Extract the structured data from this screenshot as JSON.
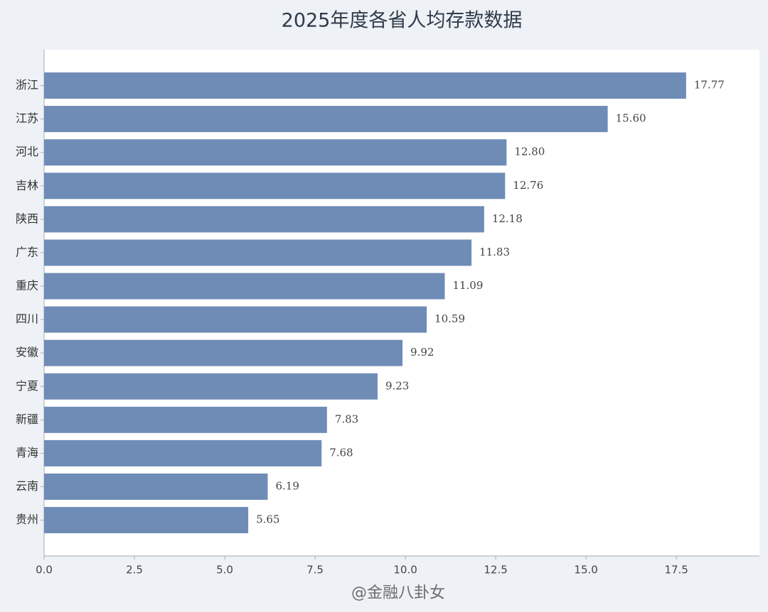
{
  "chart_data": {
    "type": "barh",
    "title": "2025年度各省人均存款数据",
    "categories": [
      "浙江",
      "江苏",
      "河北",
      "吉林",
      "陕西",
      "广东",
      "重庆",
      "四川",
      "安徽",
      "宁夏",
      "新疆",
      "青海",
      "云南",
      "贵州"
    ],
    "values": [
      17.77,
      15.6,
      12.8,
      12.76,
      12.18,
      11.83,
      11.09,
      10.59,
      9.92,
      9.23,
      7.83,
      7.68,
      6.19,
      5.65
    ],
    "value_labels": [
      "17.77",
      "15.60",
      "12.80",
      "12.76",
      "12.18",
      "11.83",
      "11.09",
      "10.59",
      "9.92",
      "9.23",
      "7.83",
      "7.68",
      "6.19",
      "5.65"
    ],
    "color": "#6f8cb7",
    "xlim": [
      0,
      19.8
    ],
    "xticks": [
      {
        "value": 0,
        "label": "0.0"
      },
      2.5,
      {
        "value": 5,
        "label": "5.0"
      },
      7.5,
      {
        "value": 10,
        "label": "10.0"
      },
      12.5,
      {
        "value": 15,
        "label": "15.0"
      },
      17.5
    ],
    "watermark": "@金融八卦女"
  }
}
